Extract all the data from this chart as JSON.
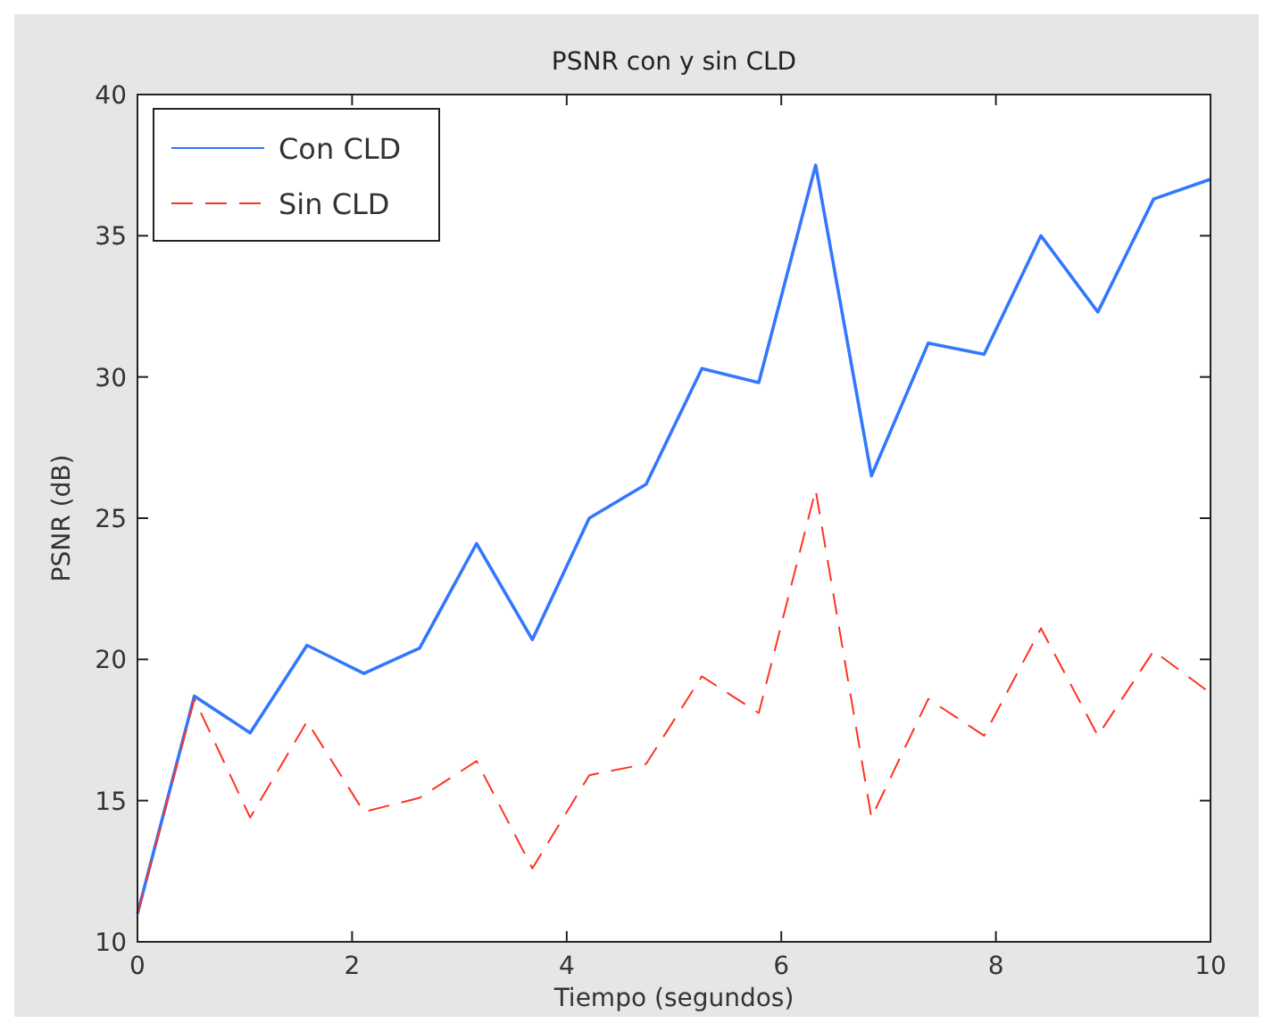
{
  "chart_data": {
    "type": "line",
    "title": "PSNR con y sin CLD",
    "xlabel": "Tiempo (segundos)",
    "ylabel": "PSNR (dB)",
    "x": [
      0,
      0.53,
      1.05,
      1.58,
      2.11,
      2.63,
      3.16,
      3.68,
      4.21,
      4.74,
      5.26,
      5.79,
      6.32,
      6.84,
      7.37,
      7.89,
      8.42,
      8.95,
      9.47,
      10
    ],
    "series": [
      {
        "name": "Con CLD",
        "color": "#3377ff",
        "line_style": "solid",
        "values": [
          11,
          18.7,
          17.4,
          20.5,
          19.5,
          20.4,
          24.1,
          20.7,
          25,
          26.2,
          30.3,
          29.8,
          37.5,
          26.5,
          31.2,
          30.8,
          35,
          32.3,
          36.3,
          37
        ]
      },
      {
        "name": "Sin CLD",
        "color": "#ff3322",
        "line_style": "dashed",
        "values": [
          11,
          18.6,
          14.4,
          17.8,
          14.6,
          15.1,
          16.4,
          12.6,
          15.9,
          16.3,
          19.4,
          18.1,
          26,
          14.4,
          18.6,
          17.3,
          21.1,
          17.3,
          20.3,
          18.8
        ]
      }
    ],
    "xlim": [
      0,
      10
    ],
    "xticks": [
      0,
      2,
      4,
      6,
      8,
      10
    ],
    "ylim": [
      10,
      40
    ],
    "yticks": [
      10,
      15,
      20,
      25,
      30,
      35,
      40
    ],
    "grid": false,
    "legend": "top left"
  }
}
